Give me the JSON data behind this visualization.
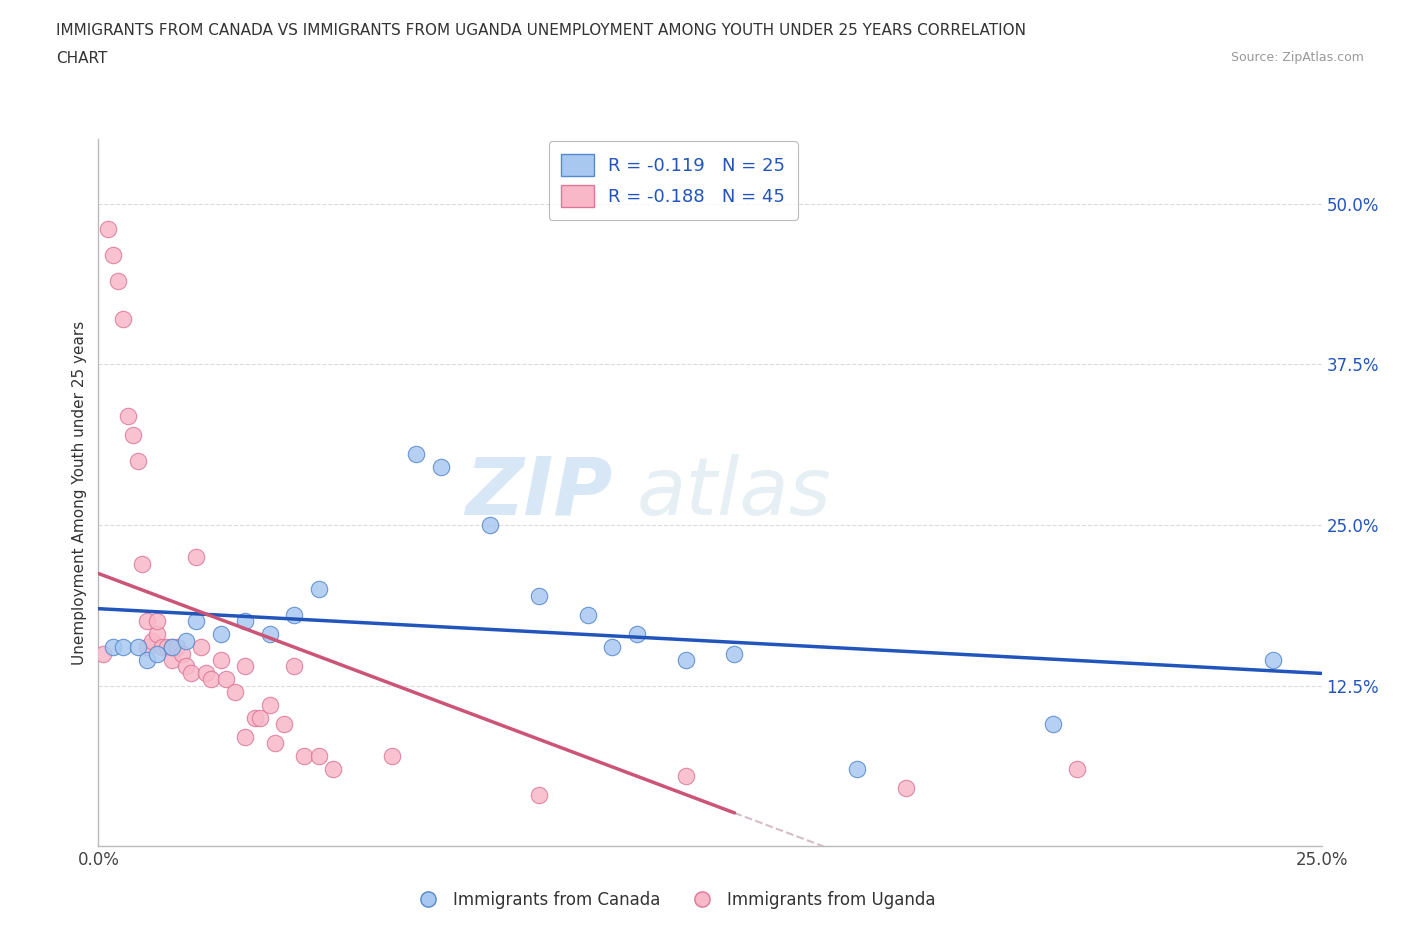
{
  "title_line1": "IMMIGRANTS FROM CANADA VS IMMIGRANTS FROM UGANDA UNEMPLOYMENT AMONG YOUTH UNDER 25 YEARS CORRELATION",
  "title_line2": "CHART",
  "source_text": "Source: ZipAtlas.com",
  "ylabel": "Unemployment Among Youth under 25 years",
  "xlim": [
    0.0,
    0.25
  ],
  "ylim": [
    0.0,
    0.55
  ],
  "xticks": [
    0.0,
    0.05,
    0.1,
    0.15,
    0.2,
    0.25
  ],
  "xtick_labels": [
    "0.0%",
    "",
    "",
    "",
    "",
    "25.0%"
  ],
  "ytick_positions": [
    0.125,
    0.25,
    0.375,
    0.5
  ],
  "ytick_labels": [
    "12.5%",
    "25.0%",
    "37.5%",
    "50.0%"
  ],
  "canada_color": "#a8c8f0",
  "canada_edge": "#5588cc",
  "uganda_color": "#f8b8c8",
  "uganda_edge": "#dd7799",
  "canada_line_color": "#2255bb",
  "uganda_line_color": "#cc5577",
  "trend_dash_color": "#ccaabb",
  "legend_canada_label": "R = -0.119   N = 25",
  "legend_uganda_label": "R = -0.188   N = 45",
  "legend_label_canada": "Immigrants from Canada",
  "legend_label_uganda": "Immigrants from Uganda",
  "watermark_zip": "ZIP",
  "watermark_atlas": "atlas",
  "canada_r": -0.119,
  "uganda_r": -0.188,
  "canada_points_x": [
    0.003,
    0.005,
    0.008,
    0.01,
    0.012,
    0.015,
    0.018,
    0.02,
    0.025,
    0.03,
    0.035,
    0.04,
    0.045,
    0.065,
    0.07,
    0.08,
    0.09,
    0.1,
    0.105,
    0.11,
    0.12,
    0.13,
    0.155,
    0.195,
    0.24
  ],
  "canada_points_y": [
    0.155,
    0.155,
    0.155,
    0.145,
    0.15,
    0.155,
    0.16,
    0.175,
    0.165,
    0.175,
    0.165,
    0.18,
    0.2,
    0.305,
    0.295,
    0.25,
    0.195,
    0.18,
    0.155,
    0.165,
    0.145,
    0.15,
    0.06,
    0.095,
    0.145
  ],
  "uganda_points_x": [
    0.001,
    0.002,
    0.003,
    0.004,
    0.005,
    0.006,
    0.007,
    0.008,
    0.009,
    0.01,
    0.01,
    0.011,
    0.012,
    0.012,
    0.013,
    0.014,
    0.015,
    0.015,
    0.016,
    0.017,
    0.018,
    0.019,
    0.02,
    0.021,
    0.022,
    0.023,
    0.025,
    0.026,
    0.028,
    0.03,
    0.03,
    0.032,
    0.033,
    0.035,
    0.036,
    0.038,
    0.04,
    0.042,
    0.045,
    0.048,
    0.06,
    0.09,
    0.12,
    0.165,
    0.2
  ],
  "uganda_points_y": [
    0.15,
    0.48,
    0.46,
    0.44,
    0.41,
    0.335,
    0.32,
    0.3,
    0.22,
    0.155,
    0.175,
    0.16,
    0.165,
    0.175,
    0.155,
    0.155,
    0.145,
    0.155,
    0.155,
    0.15,
    0.14,
    0.135,
    0.225,
    0.155,
    0.135,
    0.13,
    0.145,
    0.13,
    0.12,
    0.085,
    0.14,
    0.1,
    0.1,
    0.11,
    0.08,
    0.095,
    0.14,
    0.07,
    0.07,
    0.06,
    0.07,
    0.04,
    0.055,
    0.045,
    0.06
  ],
  "background_color": "#ffffff",
  "grid_color": "#cccccc"
}
